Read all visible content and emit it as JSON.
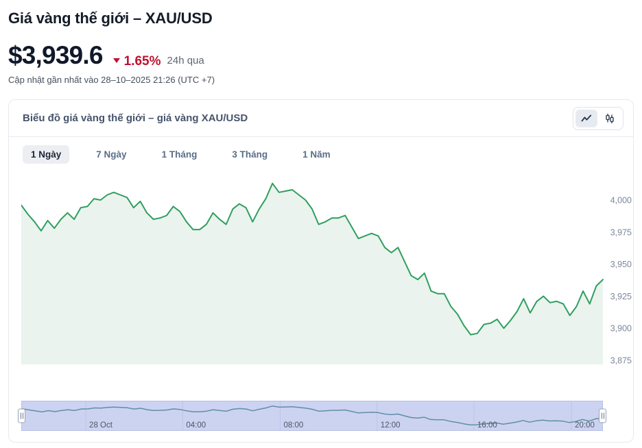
{
  "header": {
    "title": "Giá vàng thế giới – XAU/USD",
    "price": "$3,939.6",
    "change_percent": "1.65%",
    "change_direction": "down",
    "change_period": "24h qua",
    "updated_text": "Cập nhật gần nhất vào 28–10–2025 21:26 (UTC +7)"
  },
  "chart_card": {
    "title": "Biểu đồ giá vàng thế giới – giá vàng XAU/USD",
    "toggles": [
      {
        "name": "line-chart",
        "selected": true
      },
      {
        "name": "candlestick-chart",
        "selected": false
      }
    ],
    "range_tabs": [
      {
        "label": "1 Ngày",
        "selected": true
      },
      {
        "label": "7 Ngày",
        "selected": false
      },
      {
        "label": "1 Tháng",
        "selected": false
      },
      {
        "label": "3 Tháng",
        "selected": false
      },
      {
        "label": "1 Năm",
        "selected": false
      }
    ]
  },
  "colors": {
    "accent_green": "#2f9e5f",
    "area_fill": "#eaf3ee",
    "change_red": "#c01031",
    "navigator_bg": "#ccd3f0",
    "navigator_line": "#5f8fa3",
    "navigator_grid": "#bdc4ea",
    "axis_label": "#7b879b",
    "nav_label": "#4b5566"
  },
  "chart_data": {
    "type": "area",
    "title": "Biểu đồ giá vàng thế giới – giá vàng XAU/USD",
    "xlabel": "",
    "ylabel": "",
    "x_range_note": "24h: 27 Oct ~21:30 → 28 Oct 21:26 (UTC +7)",
    "ylim": [
      3868,
      4018
    ],
    "grid": false,
    "legend": false,
    "last_price": 3939.6,
    "change_percent_24h": -1.65,
    "y_ticks": [
      {
        "value": 4000,
        "label": "4,000"
      },
      {
        "value": 3975,
        "label": "3,975"
      },
      {
        "value": 3950,
        "label": "3,950"
      },
      {
        "value": 3925,
        "label": "3,925"
      },
      {
        "value": 3900,
        "label": "3,900"
      },
      {
        "value": 3875,
        "label": "3,875"
      }
    ],
    "x_labels": [
      {
        "label": "28 Oct",
        "pos": 0.11
      },
      {
        "label": "04:00",
        "pos": 0.277
      },
      {
        "label": "08:00",
        "pos": 0.445
      },
      {
        "label": "12:00",
        "pos": 0.612
      },
      {
        "label": "16:00",
        "pos": 0.779
      },
      {
        "label": "20:00",
        "pos": 0.947
      }
    ],
    "series": [
      {
        "name": "XAU/USD",
        "values": [
          3996,
          3989,
          3983,
          3976,
          3984,
          3978,
          3985,
          3990,
          3985,
          3994,
          3995,
          4001,
          4000,
          4004,
          4006,
          4004,
          4002,
          3994,
          3999,
          3990,
          3985,
          3986,
          3988,
          3995,
          3991,
          3983,
          3977,
          3977,
          3981,
          3990,
          3985,
          3981,
          3993,
          3997,
          3994,
          3983,
          3993,
          4001,
          4013,
          4006,
          4007,
          4008,
          4004,
          4000,
          3993,
          3981,
          3983,
          3986,
          3986,
          3988,
          3979,
          3970,
          3972,
          3974,
          3972,
          3963,
          3959,
          3963,
          3952,
          3941,
          3938,
          3943,
          3929,
          3927,
          3927,
          3917,
          3911,
          3902,
          3895,
          3896,
          3903,
          3904,
          3907,
          3900,
          3906,
          3913,
          3923,
          3912,
          3921,
          3925,
          3920,
          3921,
          3919,
          3910,
          3917,
          3929,
          3919,
          3933,
          3938
        ]
      }
    ]
  }
}
